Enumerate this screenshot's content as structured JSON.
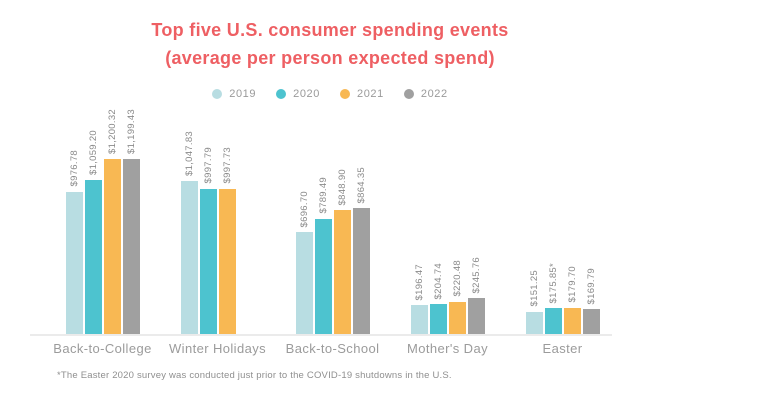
{
  "title": {
    "line1": "Top five U.S. consumer spending events",
    "line2": "(average per person expected spend)"
  },
  "legend": [
    {
      "label": "2019",
      "color": "#b8dde2"
    },
    {
      "label": "2020",
      "color": "#4dc3cf"
    },
    {
      "label": "2021",
      "color": "#f8b853"
    },
    {
      "label": "2022",
      "color": "#a0a0a0"
    }
  ],
  "footnote": "*The Easter 2020 survey was conducted just prior to the COVID-19 shutdowns in the U.S.",
  "colors": {
    "title": "#ee5f63",
    "axis_line": "#ebebeb",
    "value_label": "#8a8a8a",
    "category_label": "#9b9b9b",
    "footnote": "#8f8f8f"
  },
  "chart_data": {
    "type": "bar",
    "title": "Top five U.S. consumer spending events (average per person expected spend)",
    "xlabel": "",
    "ylabel": "",
    "ylim": [
      0,
      1250
    ],
    "grid": false,
    "legend_position": "top",
    "categories": [
      "Back-to-College",
      "Winter Holidays",
      "Back-to-School",
      "Mother's Day",
      "Easter"
    ],
    "series": [
      {
        "name": "2019",
        "color": "#b8dde2",
        "values": [
          976.78,
          1047.83,
          696.7,
          196.47,
          151.25
        ],
        "labels": [
          "$976.78",
          "$1,047.83",
          "$696.70",
          "$196.47",
          "$151.25"
        ]
      },
      {
        "name": "2020",
        "color": "#4dc3cf",
        "values": [
          1059.2,
          997.79,
          789.49,
          204.74,
          175.85
        ],
        "labels": [
          "$1,059.20",
          "$997.79",
          "$789.49",
          "$204.74",
          "$175.85*"
        ]
      },
      {
        "name": "2021",
        "color": "#f8b853",
        "values": [
          1200.32,
          997.73,
          848.9,
          220.48,
          179.7
        ],
        "labels": [
          "$1,200.32",
          "$997.73",
          "$848.90",
          "$220.48",
          "$179.70"
        ]
      },
      {
        "name": "2022",
        "color": "#a0a0a0",
        "values": [
          1199.43,
          null,
          864.35,
          245.76,
          169.79
        ],
        "labels": [
          "$1,199.43",
          null,
          "$864.35",
          "$245.76",
          "$169.79"
        ]
      }
    ]
  }
}
